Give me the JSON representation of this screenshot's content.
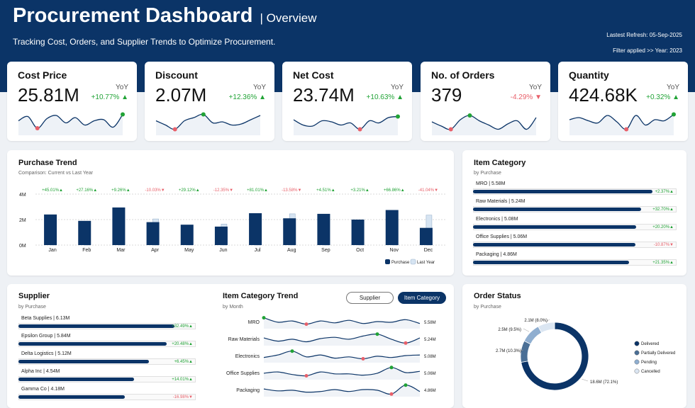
{
  "header": {
    "title": "Procurement Dashboard",
    "subtitle": "| Overview",
    "tagline": "Tracking Cost, Orders, and Supplier Trends to Optimize Procurement.",
    "refresh": "Lastest Refresh: 05-Sep-2025",
    "filter": "Filter applied >> Year: 2023"
  },
  "colors": {
    "navy": "#0b3467",
    "light_bar": "#d6e4f2",
    "positive": "#21a336",
    "negative": "#e8606a"
  },
  "kpis": [
    {
      "title": "Cost Price",
      "value": "25.81M",
      "yoy": "YoY",
      "change": "+10.77%",
      "dir": "up",
      "spark": [
        0.55,
        0.75,
        0.2,
        0.65,
        0.8,
        0.45,
        0.7,
        0.35,
        0.55,
        0.6,
        0.25,
        0.85
      ]
    },
    {
      "title": "Discount",
      "value": "2.07M",
      "yoy": "YoY",
      "change": "+12.36%",
      "dir": "up",
      "spark": [
        0.55,
        0.35,
        0.15,
        0.55,
        0.7,
        0.85,
        0.45,
        0.5,
        0.35,
        0.4,
        0.6,
        0.8
      ]
    },
    {
      "title": "Net Cost",
      "value": "23.74M",
      "yoy": "YoY",
      "change": "+10.63%",
      "dir": "up",
      "spark": [
        0.6,
        0.35,
        0.3,
        0.55,
        0.5,
        0.35,
        0.45,
        0.15,
        0.55,
        0.45,
        0.7,
        0.75
      ]
    },
    {
      "title": "No. of Orders",
      "value": "379",
      "yoy": "YoY",
      "change": "-4.29%",
      "dir": "down",
      "spark": [
        0.5,
        0.3,
        0.15,
        0.6,
        0.8,
        0.55,
        0.35,
        0.15,
        0.4,
        0.55,
        0.15,
        0.7
      ]
    },
    {
      "title": "Quantity",
      "value": "424.68K",
      "yoy": "YoY",
      "change": "+0.32%",
      "dir": "up",
      "spark": [
        0.6,
        0.7,
        0.55,
        0.45,
        0.8,
        0.5,
        0.15,
        0.8,
        0.35,
        0.6,
        0.55,
        0.85
      ]
    }
  ],
  "purchase_trend": {
    "title": "Purchase Trend",
    "subtitle": "Comparison: Current vs Last Year",
    "legend": [
      "Purchase",
      "Last Year"
    ]
  },
  "chart_data": {
    "type": "bar",
    "title": "Purchase Trend",
    "categories": [
      "Jan",
      "Feb",
      "Mar",
      "Apr",
      "May",
      "Jun",
      "Jul",
      "Aug",
      "Sep",
      "Oct",
      "Nov",
      "Dec"
    ],
    "series": [
      {
        "name": "Purchase",
        "values": [
          2.4,
          1.9,
          2.95,
          1.8,
          1.6,
          1.45,
          2.5,
          2.1,
          2.45,
          2.0,
          2.75,
          1.35
        ]
      },
      {
        "name": "Last Year",
        "values": [
          1.65,
          1.5,
          2.75,
          2.05,
          1.4,
          1.65,
          1.4,
          2.45,
          2.35,
          1.95,
          1.65,
          2.35
        ]
      }
    ],
    "changes": [
      "+45.01%",
      "+27.16%",
      "+9.26%",
      "-10.03%",
      "+29.12%",
      "-12.35%",
      "+81.01%",
      "-13.58%",
      "+4.51%",
      "+3.21%",
      "+66.86%",
      "-41.04%"
    ],
    "yticks": [
      "4M",
      "2M",
      "0M"
    ],
    "ylim": [
      0,
      4
    ],
    "grid": true,
    "legend_position": "bottom-right"
  },
  "item_category": {
    "title": "Item Category",
    "subtitle": "by Purchase",
    "items": [
      {
        "label": "MRO | 5.58M",
        "fill": 1.0,
        "change": "+2.37%",
        "dir": "up"
      },
      {
        "label": "Raw Materials | 5.24M",
        "fill": 0.94,
        "change": "+32.70%",
        "dir": "up"
      },
      {
        "label": "Electronics | 5.08M",
        "fill": 0.91,
        "change": "+20.20%",
        "dir": "up"
      },
      {
        "label": "Office Supplies | 5.06M",
        "fill": 0.905,
        "change": "-10.87%",
        "dir": "down"
      },
      {
        "label": "Packaging | 4.86M",
        "fill": 0.87,
        "change": "+21.35%",
        "dir": "up"
      }
    ]
  },
  "supplier": {
    "title": "Supplier",
    "subtitle": "by Purchase",
    "items": [
      {
        "label": "Beta Supplies | 6.13M",
        "fill": 1.0,
        "change": "+32.49%",
        "dir": "up"
      },
      {
        "label": "Epsilon Group | 5.84M",
        "fill": 0.95,
        "change": "+20.48%",
        "dir": "up"
      },
      {
        "label": "Delta Logistics | 5.12M",
        "fill": 0.835,
        "change": "+6.45%",
        "dir": "up"
      },
      {
        "label": "Alpha Inc | 4.54M",
        "fill": 0.74,
        "change": "+14.01%",
        "dir": "up"
      },
      {
        "label": "Gamma Co | 4.18M",
        "fill": 0.68,
        "change": "-16.98%",
        "dir": "down"
      }
    ]
  },
  "category_trend": {
    "title": "Item Category Trend",
    "subtitle": "by Month",
    "toggle_supplier": "Supplier",
    "toggle_category": "Item Category",
    "rows": [
      {
        "label": "MRO",
        "value": "5.58M",
        "spark": [
          0.8,
          0.45,
          0.55,
          0.3,
          0.55,
          0.4,
          0.6,
          0.35,
          0.5,
          0.45,
          0.65,
          0.35
        ]
      },
      {
        "label": "Raw Materials",
        "value": "5.24M",
        "spark": [
          0.55,
          0.3,
          0.45,
          0.25,
          0.5,
          0.6,
          0.45,
          0.7,
          0.85,
          0.45,
          0.15,
          0.55
        ]
      },
      {
        "label": "Electronics",
        "value": "5.08M",
        "spark": [
          0.35,
          0.55,
          0.85,
          0.4,
          0.55,
          0.3,
          0.4,
          0.25,
          0.45,
          0.35,
          0.5,
          0.55
        ]
      },
      {
        "label": "Office Supplies",
        "value": "5.06M",
        "spark": [
          0.45,
          0.55,
          0.35,
          0.25,
          0.55,
          0.4,
          0.4,
          0.3,
          0.45,
          0.9,
          0.5,
          0.6
        ]
      },
      {
        "label": "Packaging",
        "value": "4.86M",
        "spark": [
          0.55,
          0.4,
          0.45,
          0.3,
          0.35,
          0.5,
          0.35,
          0.5,
          0.45,
          0.15,
          0.85,
          0.35
        ]
      }
    ]
  },
  "order_status": {
    "title": "Order Status",
    "subtitle": "by Purchase",
    "slices": [
      {
        "name": "Delivered",
        "value": 72.1,
        "label": "18.6M (72.1%)",
        "color": "#0b3467"
      },
      {
        "name": "Partially Delivered",
        "value": 10.3,
        "label": "2.7M (10.3%)",
        "color": "#4a6f96"
      },
      {
        "name": "Pending",
        "value": 9.5,
        "label": "2.5M (9.5%)",
        "color": "#8faed0"
      },
      {
        "name": "Cancelled",
        "value": 8.0,
        "label": "2.1M (8.0%)",
        "color": "#dbe6f2"
      }
    ]
  }
}
